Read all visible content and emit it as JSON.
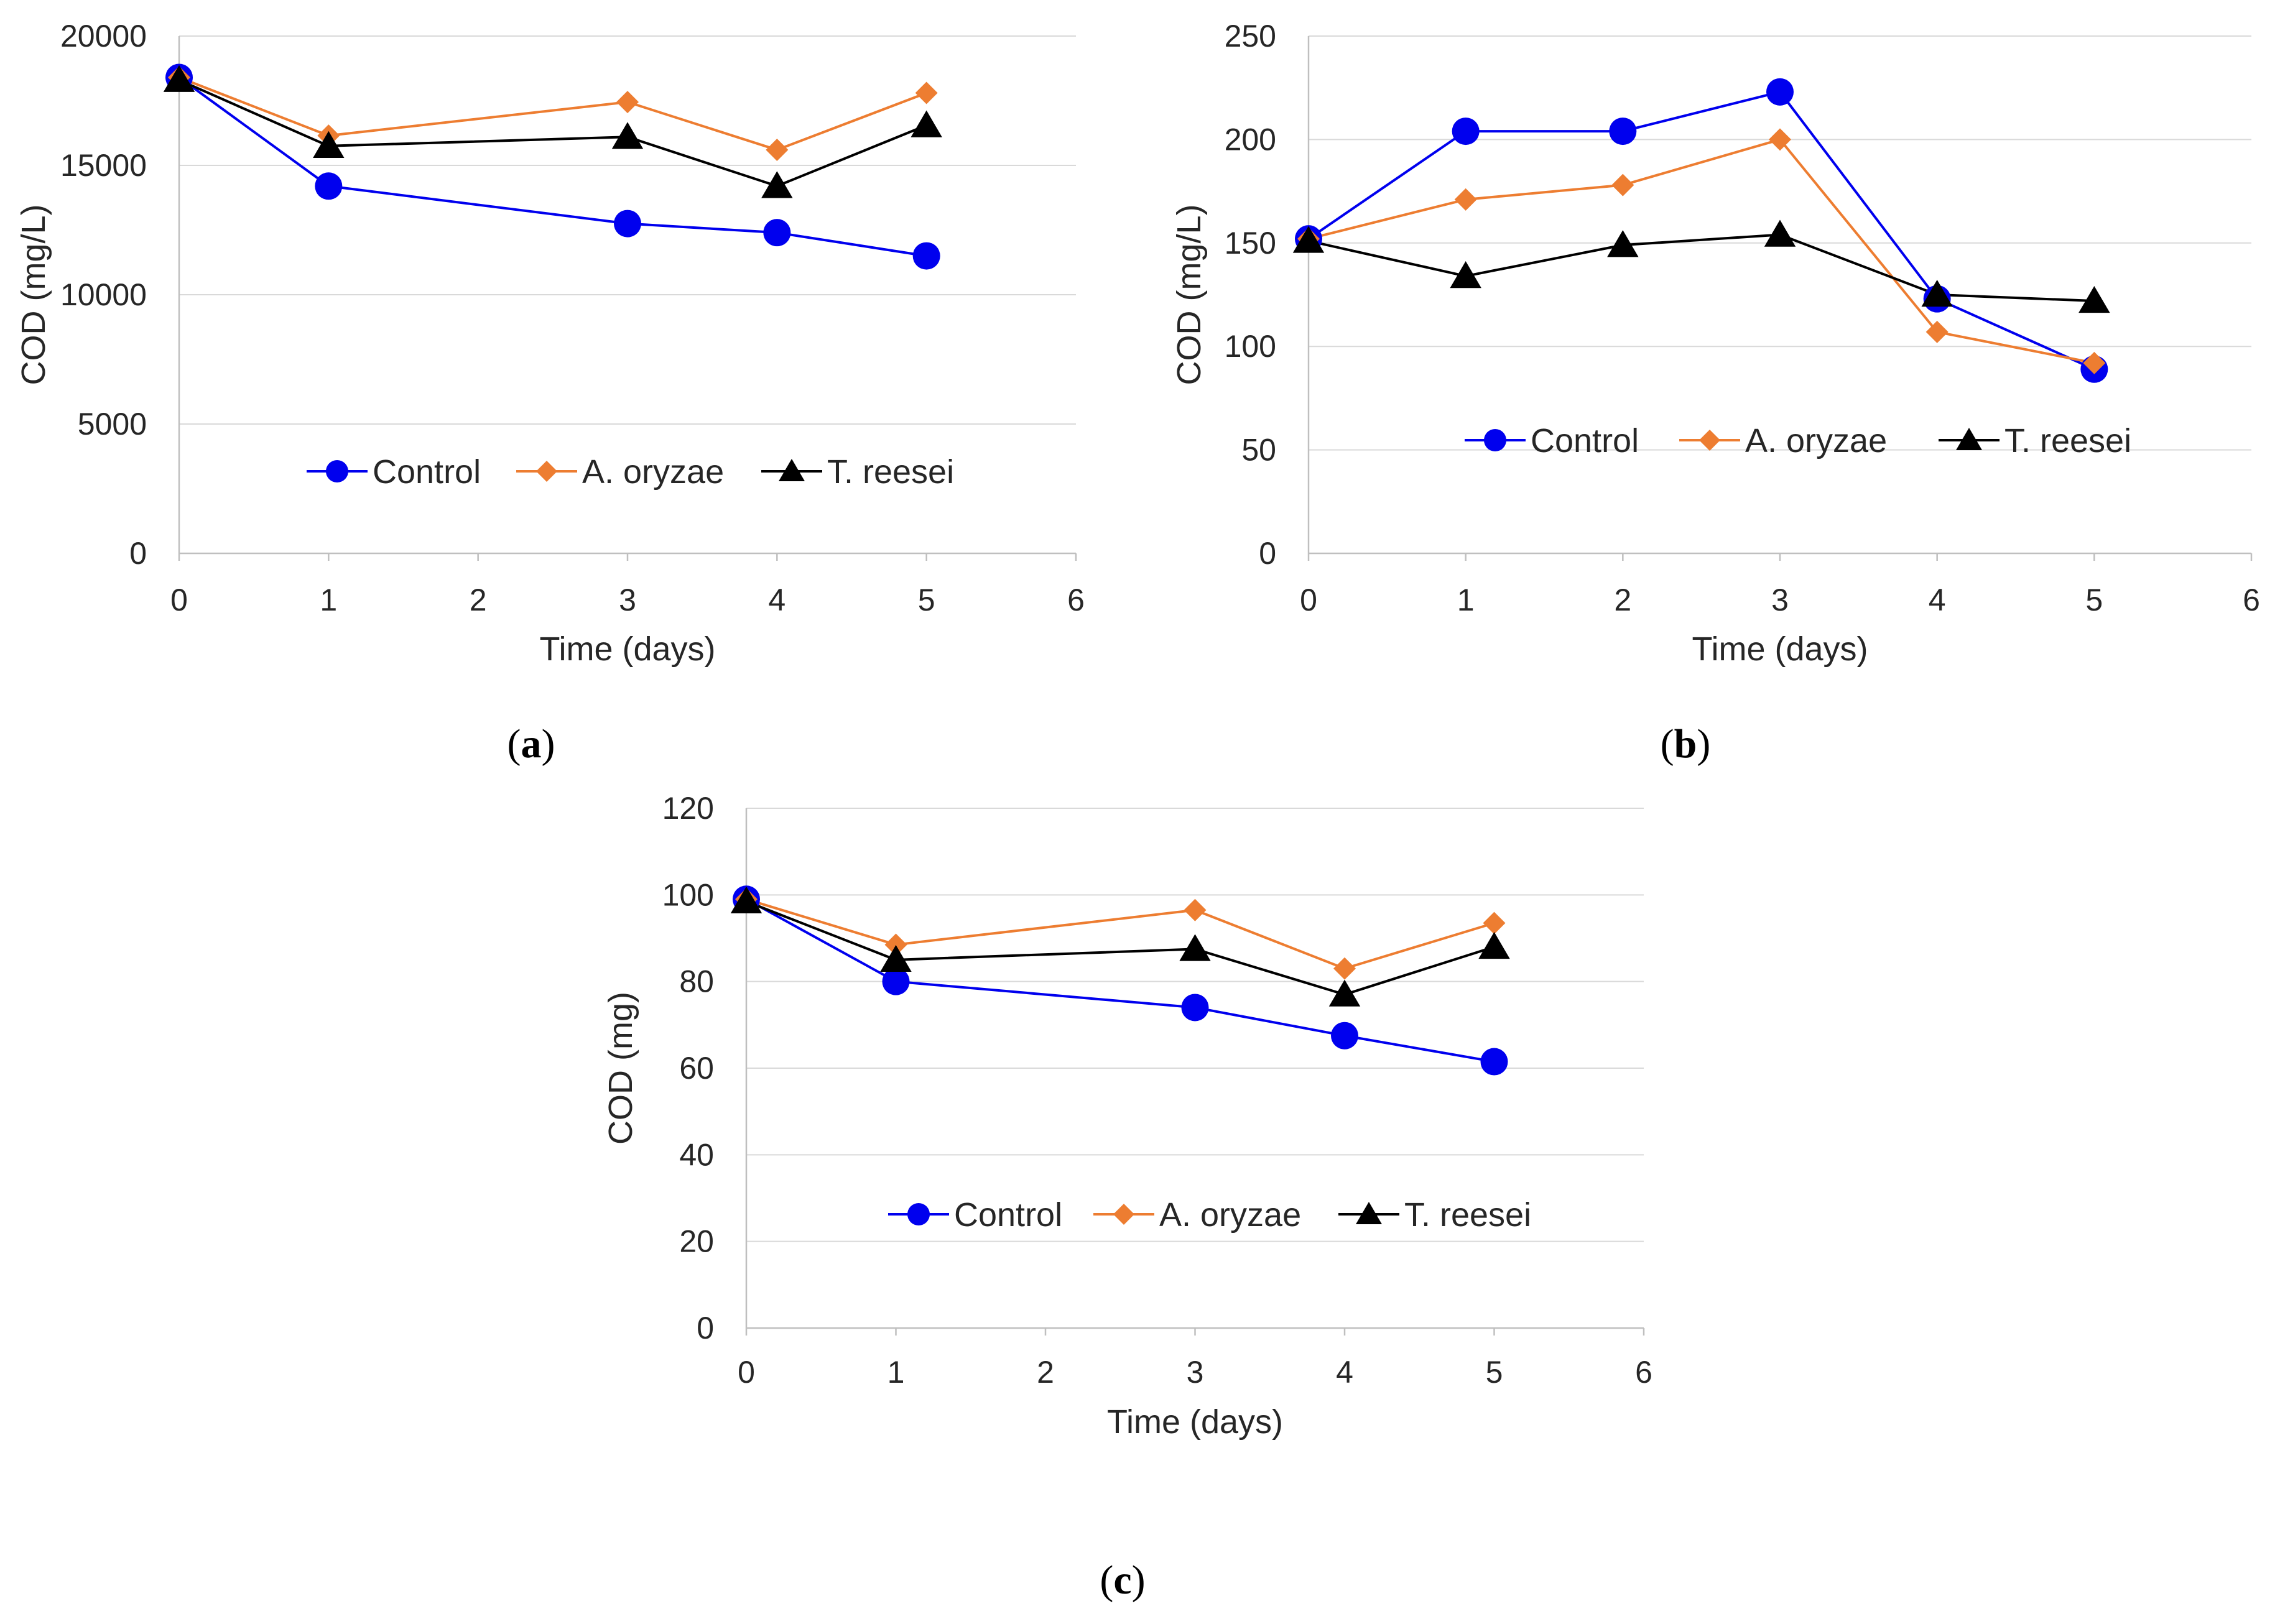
{
  "chart_data": [
    {
      "type": "line",
      "panel": "a",
      "panel_label": "a",
      "xlabel": "Time (days)",
      "ylabel": "COD (mg/L)",
      "xlim": [
        0,
        6
      ],
      "ylim": [
        0,
        20000
      ],
      "xticks": [
        0,
        1,
        2,
        3,
        4,
        5,
        6
      ],
      "yticks": [
        0,
        5000,
        10000,
        15000,
        20000
      ],
      "grid": "horizontal",
      "legend_position": "bottom-center",
      "series": [
        {
          "name": "Control",
          "color": "#0000ee",
          "marker": "circle",
          "x": [
            0,
            1,
            3,
            4,
            5
          ],
          "values": [
            18400,
            14200,
            12750,
            12400,
            11500
          ]
        },
        {
          "name": "A. oryzae",
          "color": "#ed7d31",
          "marker": "diamond",
          "x": [
            0,
            1,
            3,
            4,
            5
          ],
          "values": [
            18400,
            16150,
            17450,
            15600,
            17800
          ]
        },
        {
          "name": "T. reesei",
          "color": "#000000",
          "marker": "triangle",
          "x": [
            0,
            1,
            3,
            4,
            5
          ],
          "values": [
            18300,
            15750,
            16100,
            14200,
            16550
          ]
        }
      ]
    },
    {
      "type": "line",
      "panel": "b",
      "panel_label": "b",
      "xlabel": "Time (days)",
      "ylabel": "COD (mg/L)",
      "xlim": [
        0,
        6
      ],
      "ylim": [
        0,
        250
      ],
      "xticks": [
        0,
        1,
        2,
        3,
        4,
        5,
        6
      ],
      "yticks": [
        0,
        50,
        100,
        150,
        200,
        250
      ],
      "grid": "horizontal",
      "legend_position": "bottom-center",
      "series": [
        {
          "name": "Control",
          "color": "#0000ee",
          "marker": "circle",
          "x": [
            0,
            1,
            2,
            3,
            4,
            5
          ],
          "values": [
            152,
            204,
            204,
            223,
            123,
            89
          ]
        },
        {
          "name": "A. oryzae",
          "color": "#ed7d31",
          "marker": "diamond",
          "x": [
            0,
            1,
            2,
            3,
            4,
            5
          ],
          "values": [
            152,
            171,
            178,
            200,
            107,
            92
          ]
        },
        {
          "name": "T. reesei",
          "color": "#000000",
          "marker": "triangle",
          "x": [
            0,
            1,
            2,
            3,
            4,
            5
          ],
          "values": [
            151,
            134,
            149,
            154,
            125,
            122
          ]
        }
      ]
    },
    {
      "type": "line",
      "panel": "c",
      "panel_label": "c",
      "xlabel": "Time (days)",
      "ylabel": "COD (mg)",
      "xlim": [
        0,
        6
      ],
      "ylim": [
        0,
        120
      ],
      "xticks": [
        0,
        1,
        2,
        3,
        4,
        5,
        6
      ],
      "yticks": [
        0,
        20,
        40,
        60,
        80,
        100,
        120
      ],
      "grid": "horizontal",
      "legend_position": "bottom-center",
      "series": [
        {
          "name": "Control",
          "color": "#0000ee",
          "marker": "circle",
          "x": [
            0,
            1,
            3,
            4,
            5
          ],
          "values": [
            99,
            80,
            74,
            67.5,
            61.5
          ]
        },
        {
          "name": "A. oryzae",
          "color": "#ed7d31",
          "marker": "diamond",
          "x": [
            0,
            1,
            3,
            4,
            5
          ],
          "values": [
            99,
            88.5,
            96.5,
            83,
            93.5
          ]
        },
        {
          "name": "T. reesei",
          "color": "#000000",
          "marker": "triangle",
          "x": [
            0,
            1,
            3,
            4,
            5
          ],
          "values": [
            98.5,
            85,
            87.5,
            77,
            88
          ]
        }
      ]
    }
  ]
}
